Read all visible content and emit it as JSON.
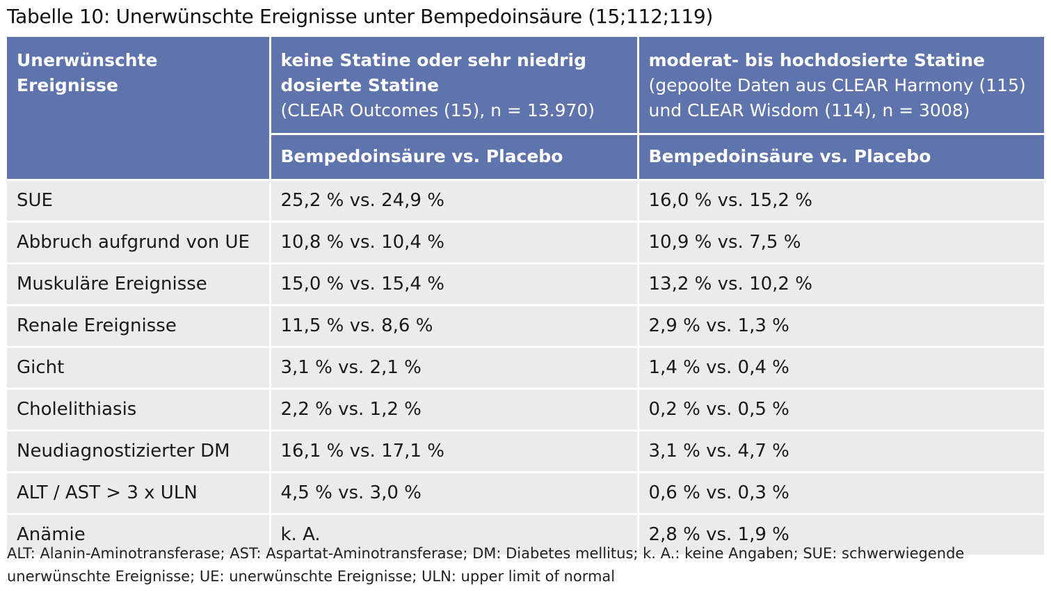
{
  "title": "Tabelle 10: Unerwünschte Ereignisse unter Bempedoinsäure (15;112;119)",
  "header": {
    "col1": "Unerwünschte Ereignisse",
    "col2_bold": "keine Statine oder sehr niedrig dosierte Statine",
    "col2_sub": "(CLEAR Outcomes (15), n = 13.970)",
    "col3_bold": "moderat- bis hochdosierte Statine",
    "col3_sub": "(gepoolte Daten aus CLEAR Harmony (115) und CLEAR Wisdom (114), n = 3008)",
    "subheader_col2": "Bempedoinsäure vs. Placebo",
    "subheader_col3": "Bempedoinsäure vs. Placebo"
  },
  "rows": [
    {
      "event": "SUE",
      "low": "25,2 % vs. 24,9 %",
      "high": "16,0 % vs. 15,2 %"
    },
    {
      "event": "Abbruch aufgrund von UE",
      "low": "10,8 % vs. 10,4 %",
      "high": "10,9 % vs. 7,5 %"
    },
    {
      "event": "Muskuläre Ereignisse",
      "low": "15,0 % vs. 15,4 %",
      "high": "13,2 % vs. 10,2 %"
    },
    {
      "event": "Renale Ereignisse",
      "low": "11,5 % vs. 8,6 %",
      "high": "2,9 % vs. 1,3 %"
    },
    {
      "event": "Gicht",
      "low": "3,1 % vs. 2,1 %",
      "high": "1,4 % vs. 0,4 %"
    },
    {
      "event": "Cholelithiasis",
      "low": "2,2 % vs. 1,2 %",
      "high": "0,2 % vs. 0,5 %"
    },
    {
      "event": "Neudiagnostizierter DM",
      "low": "16,1 % vs. 17,1 %",
      "high": "3,1 % vs. 4,7 %"
    },
    {
      "event": "ALT / AST > 3 x ULN",
      "low": "4,5 % vs. 3,0 %",
      "high": "0,6 % vs. 0,3 %"
    },
    {
      "event": "Anämie",
      "low": "k. A.",
      "high": "2,8 % vs. 1,9 %"
    }
  ],
  "footnote": "ALT: Alanin-Aminotransferase; AST: Aspartat-Aminotransferase; DM: Diabetes mellitus; k. A.: keine Angaben; SUE: schwerwiegende unerwünschte Ereignisse; UE: unerwünschte Ereignisse; ULN: upper limit of normal",
  "colors": {
    "header_bg": "#5f73ad",
    "row_bg": "#ebebeb"
  }
}
